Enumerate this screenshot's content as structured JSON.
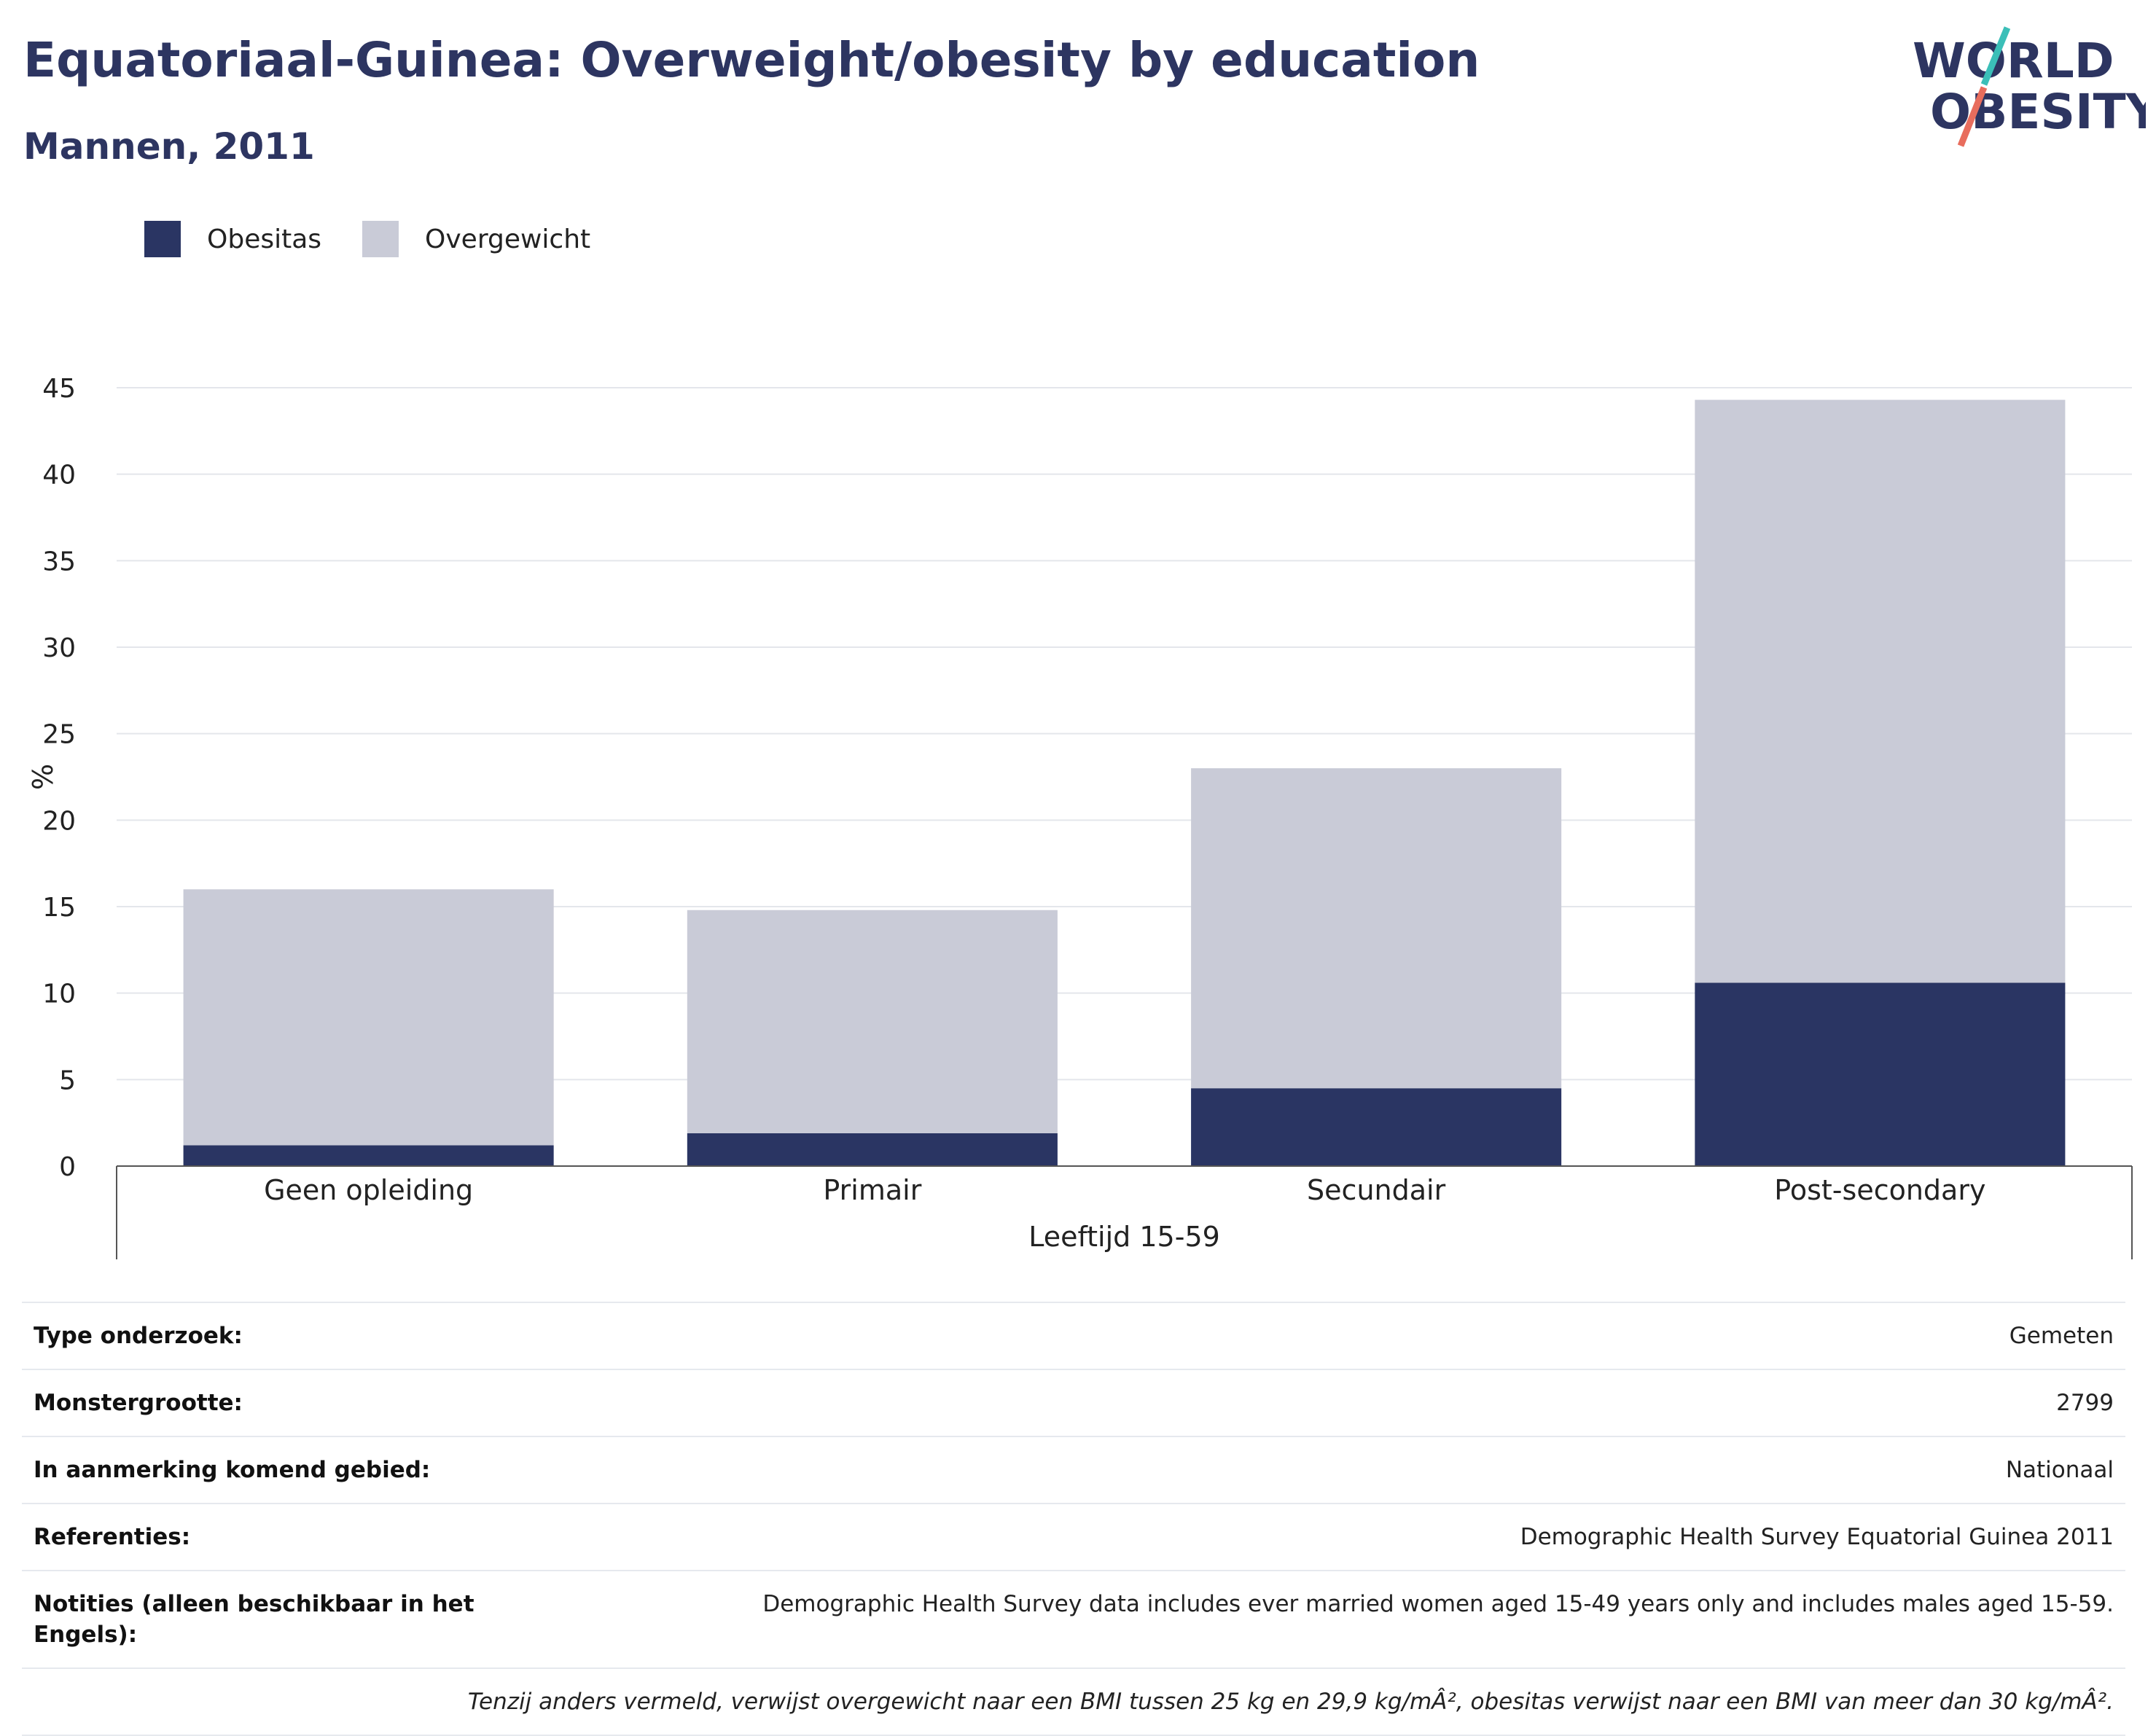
{
  "header": {
    "title": "Equatoriaal-Guinea: Overweight/obesity by education",
    "subtitle": "Mannen, 2011"
  },
  "logo": {
    "line1": "WORLD",
    "line2": "OBESITY",
    "colors": {
      "text": "#2d3561",
      "accent_teal": "#3bbfb8",
      "accent_coral": "#e86d5d"
    }
  },
  "legend": [
    {
      "label": "Obesitas",
      "color": "#2a3563"
    },
    {
      "label": "Overgewicht",
      "color": "#c9cbd7"
    }
  ],
  "chart_data": {
    "type": "bar",
    "stacked": true,
    "categories": [
      "Geen opleiding",
      "Primair",
      "Secundair",
      "Post-secondary"
    ],
    "series": [
      {
        "name": "Obesitas",
        "color": "#2a3563",
        "values": [
          1.2,
          1.9,
          4.5,
          10.6
        ]
      },
      {
        "name": "Overgewicht",
        "color": "#c9cbd7",
        "values": [
          14.8,
          12.9,
          18.5,
          33.7
        ]
      }
    ],
    "totals": [
      16.0,
      14.8,
      23.0,
      44.3
    ],
    "ylabel": "%",
    "xlabel": "Leeftijd 15-59",
    "ylim": [
      0,
      45
    ],
    "yticks": [
      0,
      5,
      10,
      15,
      20,
      25,
      30,
      35,
      40,
      45
    ],
    "grid": true,
    "legend_position": "top-left"
  },
  "info": {
    "survey_type_label": "Type onderzoek:",
    "survey_type_value": "Gemeten",
    "sample_size_label": "Monstergrootte:",
    "sample_size_value": "2799",
    "area_label": "In aanmerking komend gebied:",
    "area_value": "Nationaal",
    "references_label": "Referenties:",
    "references_value": "Demographic Health Survey Equatorial Guinea 2011",
    "notes_label": "Notities (alleen beschikbaar in het Engels):",
    "notes_value": "Demographic Health Survey data includes ever married women aged 15-49 years only and includes males aged 15-59.",
    "footnote": "Tenzij anders vermeld, verwijst overgewicht naar een BMI tussen 25 kg en 29,9 kg/mÂ², obesitas verwijst naar een BMI van meer dan 30 kg/mÂ²."
  }
}
